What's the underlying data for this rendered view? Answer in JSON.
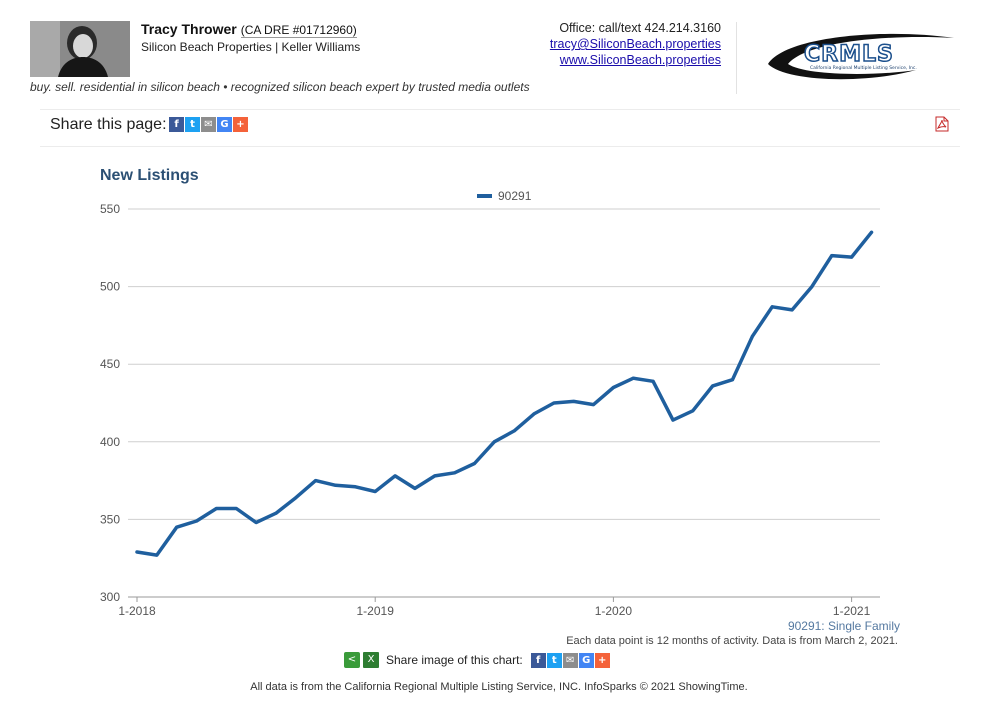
{
  "agent": {
    "name": "Tracy Thrower",
    "dre": "(CA DRE #01712960)",
    "company": "Silicon Beach Properties | Keller Williams",
    "tagline": "buy. sell. residential in silicon beach • recognized silicon beach expert by trusted media outlets"
  },
  "contact": {
    "office": "Office: call/text 424.214.3160",
    "email": "tracy@SiliconBeach.properties",
    "website": "www.SiliconBeach.properties"
  },
  "logo": {
    "text": "CRMLS",
    "subtext": "California Regional Multiple Listing Service, Inc."
  },
  "share_page": {
    "label": "Share this page:",
    "icons": [
      "facebook-icon",
      "twitter-icon",
      "email-icon",
      "google-icon",
      "plus-icon"
    ]
  },
  "chart_data": {
    "type": "line",
    "title": "New Listings",
    "legend": "top-center",
    "grid": true,
    "ylim": [
      300,
      550
    ],
    "yticks": [
      300,
      350,
      400,
      450,
      500,
      550
    ],
    "xticks": [
      "1-2018",
      "1-2019",
      "1-2020",
      "1-2021"
    ],
    "x": [
      "1-2018",
      "2-2018",
      "3-2018",
      "4-2018",
      "5-2018",
      "6-2018",
      "7-2018",
      "8-2018",
      "9-2018",
      "10-2018",
      "11-2018",
      "12-2018",
      "1-2019",
      "2-2019",
      "3-2019",
      "4-2019",
      "5-2019",
      "6-2019",
      "7-2019",
      "8-2019",
      "9-2019",
      "10-2019",
      "11-2019",
      "12-2019",
      "1-2020",
      "2-2020",
      "3-2020",
      "4-2020",
      "5-2020",
      "6-2020",
      "7-2020",
      "8-2020",
      "9-2020",
      "10-2020",
      "11-2020",
      "12-2020",
      "1-2021",
      "2-2021"
    ],
    "series": [
      {
        "name": "90291",
        "color": "#1f5f9e",
        "values": [
          329,
          327,
          345,
          349,
          357,
          357,
          348,
          354,
          364,
          375,
          372,
          371,
          368,
          378,
          370,
          378,
          380,
          386,
          400,
          407,
          418,
          425,
          426,
          424,
          435,
          441,
          439,
          414,
          420,
          436,
          440,
          468,
          487,
          485,
          500,
          520,
          519,
          535
        ]
      }
    ]
  },
  "chart_notes": {
    "series_label": "90291: Single Family",
    "data_note": "Each data point is 12 months of activity. Data is from March 2, 2021."
  },
  "image_share": {
    "label": "Share image of this chart:"
  },
  "footer": "All data is from the California Regional Multiple Listing Service, INC. InfoSparks © 2021 ShowingTime."
}
